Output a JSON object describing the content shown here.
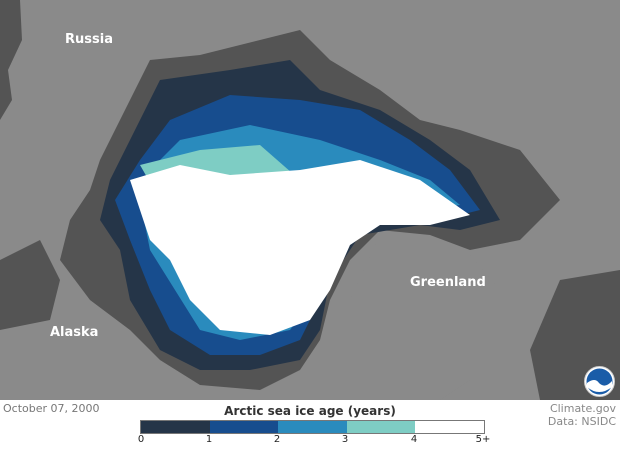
{
  "map": {
    "labels": {
      "russia": "Russia",
      "greenland": "Greenland",
      "alaska": "Alaska"
    },
    "colors": {
      "land": "#8a8a8a",
      "ocean": "#545454"
    }
  },
  "date": "October 07, 2000",
  "legend": {
    "title": "Arctic sea ice age (years)",
    "bins": [
      {
        "range": "0-1",
        "color": "#253548"
      },
      {
        "range": "1-2",
        "color": "#174d8e"
      },
      {
        "range": "2-3",
        "color": "#2a8bbd"
      },
      {
        "range": "3-4",
        "color": "#7ecdc4"
      },
      {
        "range": "4-5+",
        "color": "#ffffff"
      }
    ],
    "ticks": [
      "0",
      "1",
      "2",
      "3",
      "4",
      "5+"
    ]
  },
  "credit": {
    "line1": "Climate.gov",
    "line2": "Data: NSIDC"
  },
  "logo": {
    "icon": "noaa-logo",
    "text": "NOAA"
  }
}
